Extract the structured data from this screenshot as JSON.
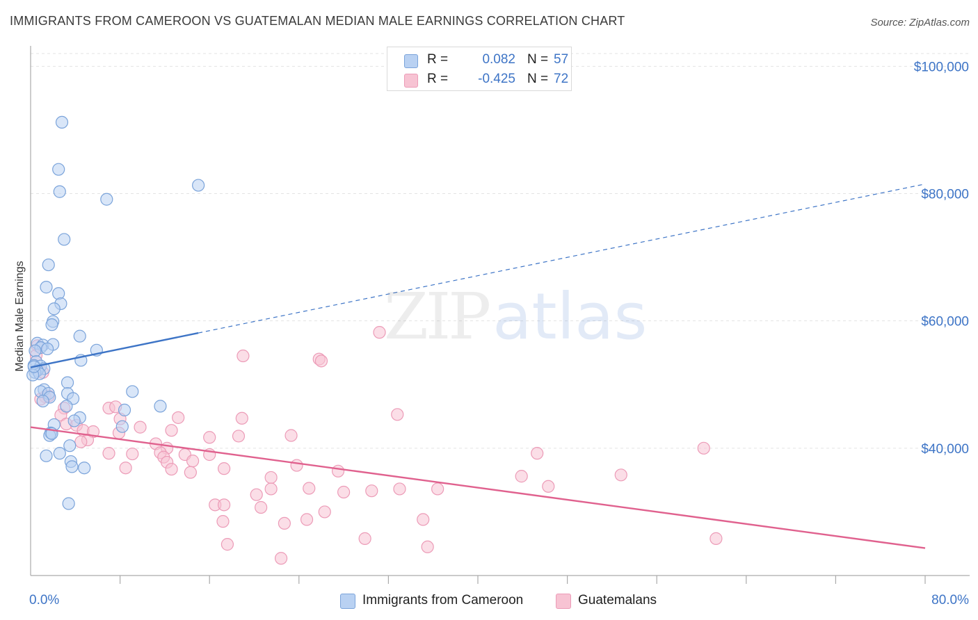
{
  "title": "IMMIGRANTS FROM CAMEROON VS GUATEMALAN MEDIAN MALE EARNINGS CORRELATION CHART",
  "source": "Source: ZipAtlas.com",
  "watermark": {
    "part1": "ZIP",
    "part2": "atlas"
  },
  "colors": {
    "blue": "#3d74c6",
    "blue_fill": "#b9d1f2",
    "blue_stroke": "#7aa3da",
    "pink": "#e0618e",
    "pink_fill": "#f7c3d3",
    "pink_stroke": "#ec9bb7",
    "grid": "#e3e3e3"
  },
  "legend": {
    "rows": [
      {
        "swatch": "blue",
        "r_label": "R =",
        "r_value": "0.082",
        "n_label": "N =",
        "n_value": "57"
      },
      {
        "swatch": "pink",
        "r_label": "R =",
        "r_value": "-0.425",
        "n_label": "N =",
        "n_value": "72"
      }
    ]
  },
  "bottom_legend": [
    {
      "swatch": "blue",
      "label": "Immigrants from Cameroon"
    },
    {
      "swatch": "pink",
      "label": "Guatemalans"
    }
  ],
  "chart_data": {
    "type": "scatter",
    "title": "IMMIGRANTS FROM CAMEROON VS GUATEMALAN MEDIAN MALE EARNINGS CORRELATION CHART",
    "xlabel": "",
    "ylabel": "Median Male Earnings",
    "xlim": [
      0,
      80
    ],
    "ylim": [
      20000,
      102000
    ],
    "x_tick_labels": [
      {
        "value": 0,
        "label": "0.0%"
      },
      {
        "value": 80,
        "label": "80.0%"
      }
    ],
    "x_minor_ticks": [
      8,
      16,
      24,
      32,
      40,
      48,
      56,
      64,
      72,
      80
    ],
    "y_ticks": [
      {
        "value": 40000,
        "label": "$40,000"
      },
      {
        "value": 60000,
        "label": "$60,000"
      },
      {
        "value": 80000,
        "label": "$80,000"
      },
      {
        "value": 100000,
        "label": "$100,000"
      }
    ],
    "series": [
      {
        "name": "Immigrants from Cameroon",
        "color": "blue",
        "trend": {
          "x0": 0,
          "y0": 52700,
          "x1": 15,
          "y1": 58100,
          "dashed_to_x": 80,
          "dashed_to_y": 81500
        },
        "points": [
          [
            2.8,
            91200
          ],
          [
            2.5,
            83800
          ],
          [
            2.6,
            80300
          ],
          [
            15,
            81300
          ],
          [
            6.8,
            79100
          ],
          [
            3.0,
            72800
          ],
          [
            1.6,
            68800
          ],
          [
            1.4,
            65300
          ],
          [
            2.5,
            64300
          ],
          [
            2.7,
            62700
          ],
          [
            2.1,
            61900
          ],
          [
            2.0,
            59900
          ],
          [
            1.9,
            59400
          ],
          [
            4.4,
            57600
          ],
          [
            0.6,
            56500
          ],
          [
            1.1,
            56200
          ],
          [
            2.0,
            56300
          ],
          [
            0.9,
            55800
          ],
          [
            1.5,
            55600
          ],
          [
            0.4,
            55300
          ],
          [
            5.9,
            55400
          ],
          [
            4.5,
            53800
          ],
          [
            0.5,
            53600
          ],
          [
            0.3,
            53000
          ],
          [
            0.9,
            52900
          ],
          [
            1.2,
            52500
          ],
          [
            0.6,
            52200
          ],
          [
            0.4,
            51900
          ],
          [
            0.8,
            51700
          ],
          [
            0.2,
            51500
          ],
          [
            3.3,
            50300
          ],
          [
            1.2,
            49200
          ],
          [
            0.9,
            48900
          ],
          [
            1.6,
            48600
          ],
          [
            3.3,
            48600
          ],
          [
            9.1,
            48900
          ],
          [
            1.7,
            48000
          ],
          [
            3.8,
            47800
          ],
          [
            1.1,
            47400
          ],
          [
            11.6,
            46600
          ],
          [
            8.4,
            46000
          ],
          [
            3.2,
            46600
          ],
          [
            4.4,
            44800
          ],
          [
            3.9,
            44300
          ],
          [
            8.2,
            43400
          ],
          [
            2.1,
            43700
          ],
          [
            1.8,
            42400
          ],
          [
            1.7,
            42000
          ],
          [
            3.5,
            40400
          ],
          [
            2.6,
            39200
          ],
          [
            1.4,
            38800
          ],
          [
            3.6,
            37900
          ],
          [
            3.7,
            37100
          ],
          [
            4.8,
            36900
          ],
          [
            3.4,
            31300
          ],
          [
            1.9,
            42300
          ],
          [
            0.3,
            52800
          ]
        ]
      },
      {
        "name": "Guatemalans",
        "color": "pink",
        "trend": {
          "x0": 0,
          "y0": 43300,
          "x1": 80,
          "y1": 24300
        },
        "points": [
          [
            0.6,
            56100
          ],
          [
            0.5,
            54600
          ],
          [
            1.1,
            51900
          ],
          [
            31.2,
            58200
          ],
          [
            25.8,
            54000
          ],
          [
            26.0,
            53700
          ],
          [
            19.0,
            54500
          ],
          [
            1.3,
            48100
          ],
          [
            0.9,
            47700
          ],
          [
            1.6,
            48200
          ],
          [
            7.0,
            46300
          ],
          [
            7.6,
            46500
          ],
          [
            3.0,
            46300
          ],
          [
            2.7,
            45200
          ],
          [
            8.0,
            44600
          ],
          [
            13.2,
            44800
          ],
          [
            18.9,
            44700
          ],
          [
            32.8,
            45300
          ],
          [
            3.2,
            43800
          ],
          [
            4.1,
            43600
          ],
          [
            9.8,
            43300
          ],
          [
            4.7,
            42800
          ],
          [
            5.6,
            42600
          ],
          [
            7.9,
            42400
          ],
          [
            12.6,
            42800
          ],
          [
            16.0,
            41700
          ],
          [
            18.6,
            41900
          ],
          [
            23.3,
            42000
          ],
          [
            5.1,
            41300
          ],
          [
            4.5,
            41000
          ],
          [
            11.2,
            40700
          ],
          [
            12.2,
            40000
          ],
          [
            11.6,
            39300
          ],
          [
            7.0,
            39200
          ],
          [
            9.1,
            39100
          ],
          [
            11.9,
            38600
          ],
          [
            13.8,
            39000
          ],
          [
            14.5,
            38000
          ],
          [
            16.0,
            39000
          ],
          [
            12.2,
            37800
          ],
          [
            45.3,
            39200
          ],
          [
            60.2,
            40000
          ],
          [
            8.5,
            36900
          ],
          [
            12.6,
            36700
          ],
          [
            14.3,
            36200
          ],
          [
            17.3,
            36800
          ],
          [
            23.8,
            37300
          ],
          [
            27.5,
            36400
          ],
          [
            21.5,
            35400
          ],
          [
            43.9,
            35600
          ],
          [
            52.8,
            35800
          ],
          [
            21.5,
            33600
          ],
          [
            24.9,
            33700
          ],
          [
            28.0,
            33100
          ],
          [
            30.5,
            33300
          ],
          [
            33.0,
            33600
          ],
          [
            36.4,
            33600
          ],
          [
            20.2,
            32700
          ],
          [
            46.3,
            34000
          ],
          [
            16.5,
            31100
          ],
          [
            17.3,
            31100
          ],
          [
            20.6,
            30700
          ],
          [
            26.3,
            30000
          ],
          [
            35.1,
            28800
          ],
          [
            17.2,
            28500
          ],
          [
            22.7,
            28200
          ],
          [
            24.7,
            28800
          ],
          [
            29.9,
            25800
          ],
          [
            17.6,
            24900
          ],
          [
            35.5,
            24500
          ],
          [
            61.3,
            25800
          ],
          [
            22.4,
            22700
          ]
        ]
      }
    ]
  }
}
